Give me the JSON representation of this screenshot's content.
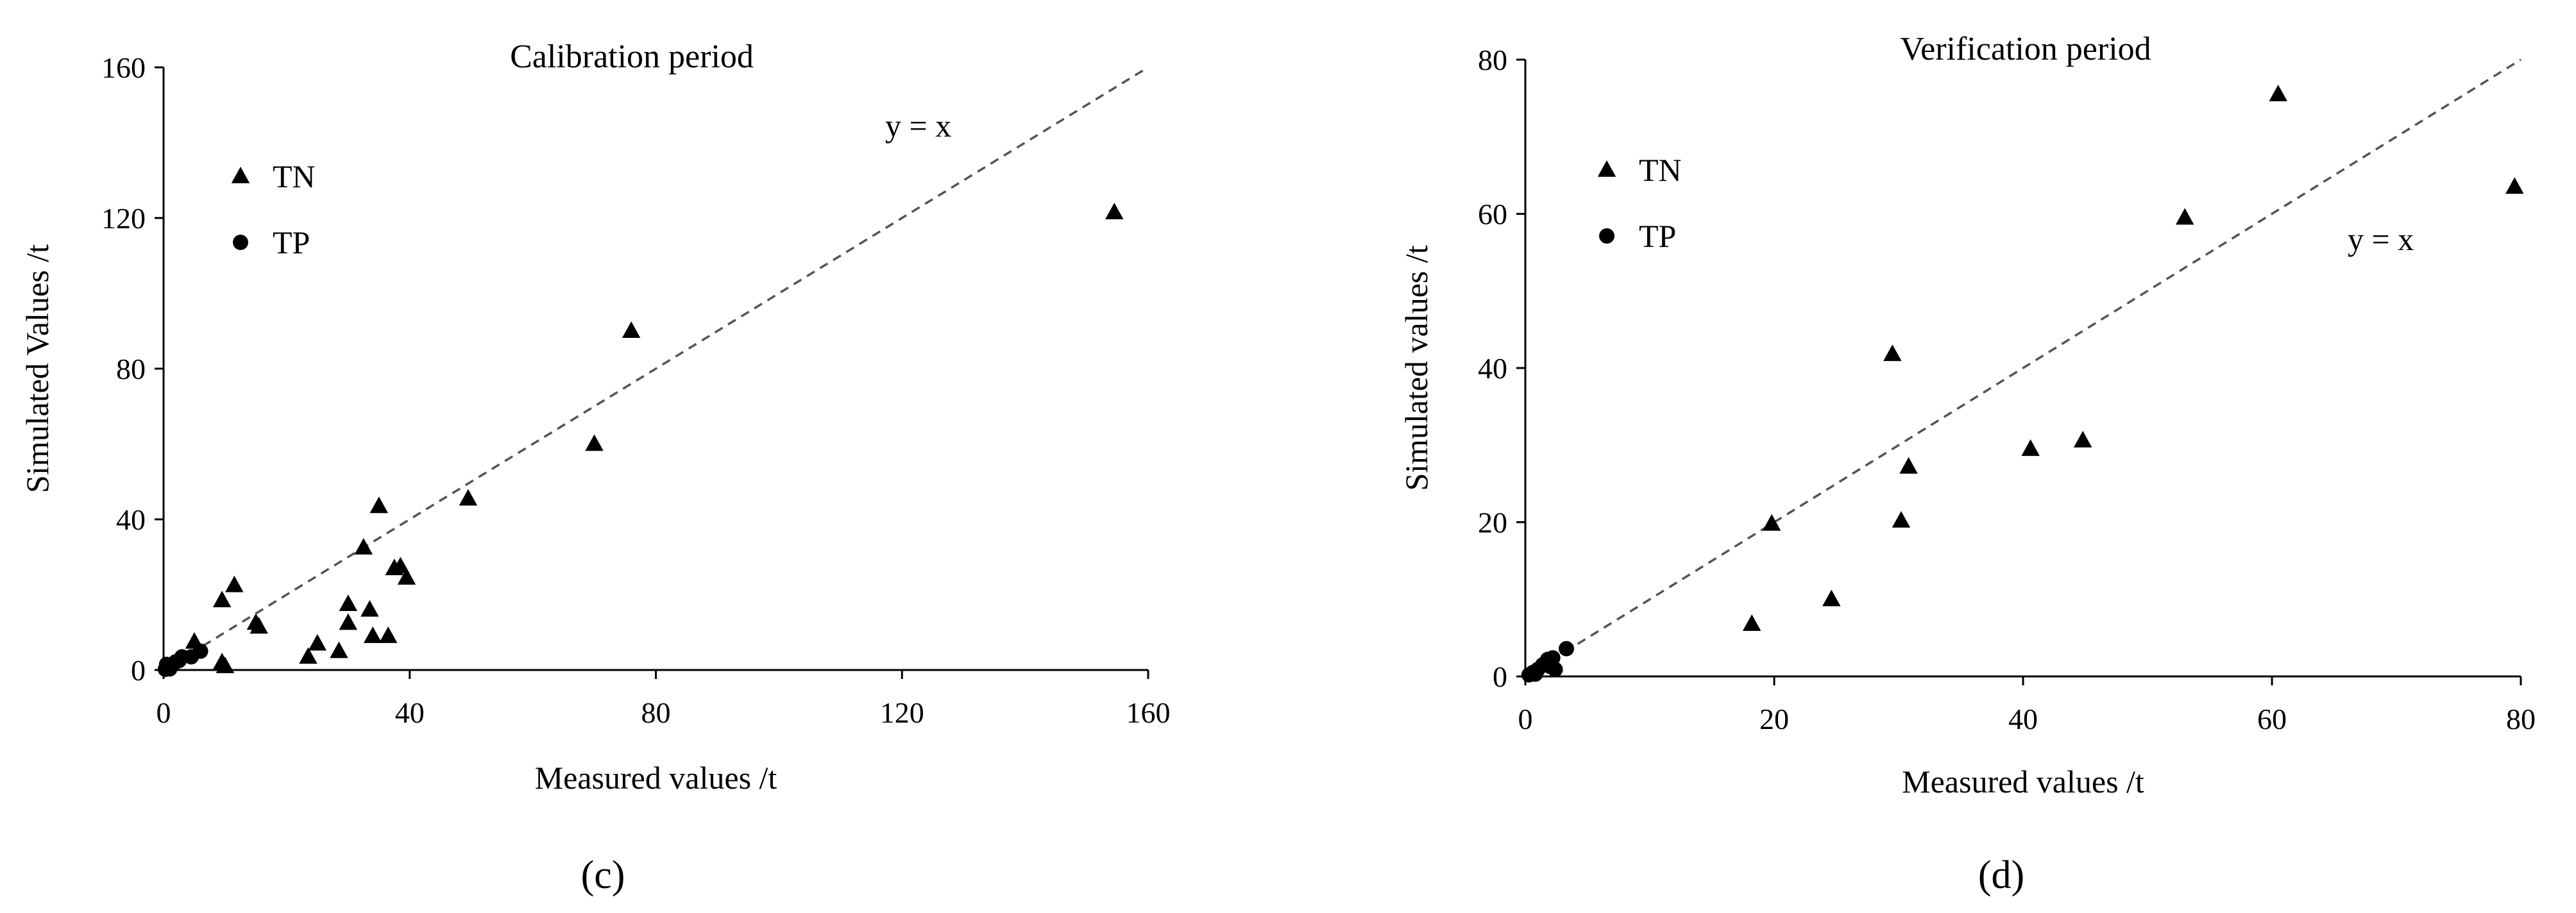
{
  "chart_data": [
    {
      "type": "scatter",
      "title": "Calibration period",
      "xlabel": "Measured values /t",
      "ylabel": "Simulated Values /t",
      "xlim": [
        0,
        160
      ],
      "ylim": [
        0,
        160
      ],
      "xticks": [
        0,
        40,
        80,
        120,
        160
      ],
      "yticks": [
        0,
        40,
        80,
        120,
        160
      ],
      "grid": false,
      "legend": "top-left",
      "panel_label": "(c)",
      "reference_line": {
        "label": "y = x",
        "style": "dashed"
      },
      "series": [
        {
          "name": "TN",
          "marker": "triangle",
          "points": [
            [
              154.5,
              121.5
            ],
            [
              76,
              90
            ],
            [
              70,
              60
            ],
            [
              49.5,
              45.5
            ],
            [
              35,
              43.5
            ],
            [
              32.5,
              32.5
            ],
            [
              37.5,
              27
            ],
            [
              38.5,
              27.5
            ],
            [
              39.5,
              24.5
            ],
            [
              30,
              17.5
            ],
            [
              30,
              12.5
            ],
            [
              33.5,
              16
            ],
            [
              34,
              9
            ],
            [
              36.5,
              9
            ],
            [
              28.5,
              5
            ],
            [
              25,
              7
            ],
            [
              23.5,
              3.5
            ],
            [
              11.5,
              22.5
            ],
            [
              9.5,
              18.5
            ],
            [
              15,
              12.5
            ],
            [
              15.5,
              11.5
            ],
            [
              5,
              7.5
            ],
            [
              9.5,
              2
            ],
            [
              10,
              1
            ]
          ]
        },
        {
          "name": "TP",
          "marker": "circle",
          "points": [
            [
              0.3,
              0.2
            ],
            [
              0.8,
              0.5
            ],
            [
              1.2,
              1
            ],
            [
              1.5,
              1.5
            ],
            [
              2,
              2.2
            ],
            [
              2.5,
              2.5
            ],
            [
              3,
              3.5
            ],
            [
              4.5,
              3.5
            ],
            [
              6,
              5
            ],
            [
              0.5,
              1.5
            ],
            [
              1,
              0.3
            ]
          ]
        }
      ]
    },
    {
      "type": "scatter",
      "title": "Verification period",
      "xlabel": "Measured values /t",
      "ylabel": "Simulated values /t",
      "xlim": [
        0,
        80
      ],
      "ylim": [
        0,
        80
      ],
      "xticks": [
        0,
        20,
        40,
        60,
        80
      ],
      "yticks": [
        0,
        20,
        40,
        60,
        80
      ],
      "grid": false,
      "legend": "top-left",
      "panel_label": "(d)",
      "reference_line": {
        "label": "y = x",
        "style": "dashed"
      },
      "series": [
        {
          "name": "TN",
          "marker": "triangle",
          "points": [
            [
              60.5,
              75.5
            ],
            [
              79.5,
              63.5
            ],
            [
              53,
              59.5
            ],
            [
              29.5,
              41.8
            ],
            [
              44.8,
              30.6
            ],
            [
              40.6,
              29.5
            ],
            [
              30.8,
              27.2
            ],
            [
              30.2,
              20.2
            ],
            [
              19.8,
              19.8
            ],
            [
              24.6,
              10
            ],
            [
              18.2,
              6.8
            ]
          ]
        },
        {
          "name": "TP",
          "marker": "circle",
          "points": [
            [
              0.3,
              0.2
            ],
            [
              0.6,
              0.5
            ],
            [
              1,
              0.9
            ],
            [
              1.4,
              1.5
            ],
            [
              1.8,
              2.2
            ],
            [
              2,
              1.3
            ],
            [
              2.2,
              2.4
            ],
            [
              2.4,
              0.9
            ],
            [
              3.3,
              3.6
            ],
            [
              0.8,
              0.3
            ]
          ]
        }
      ]
    }
  ]
}
